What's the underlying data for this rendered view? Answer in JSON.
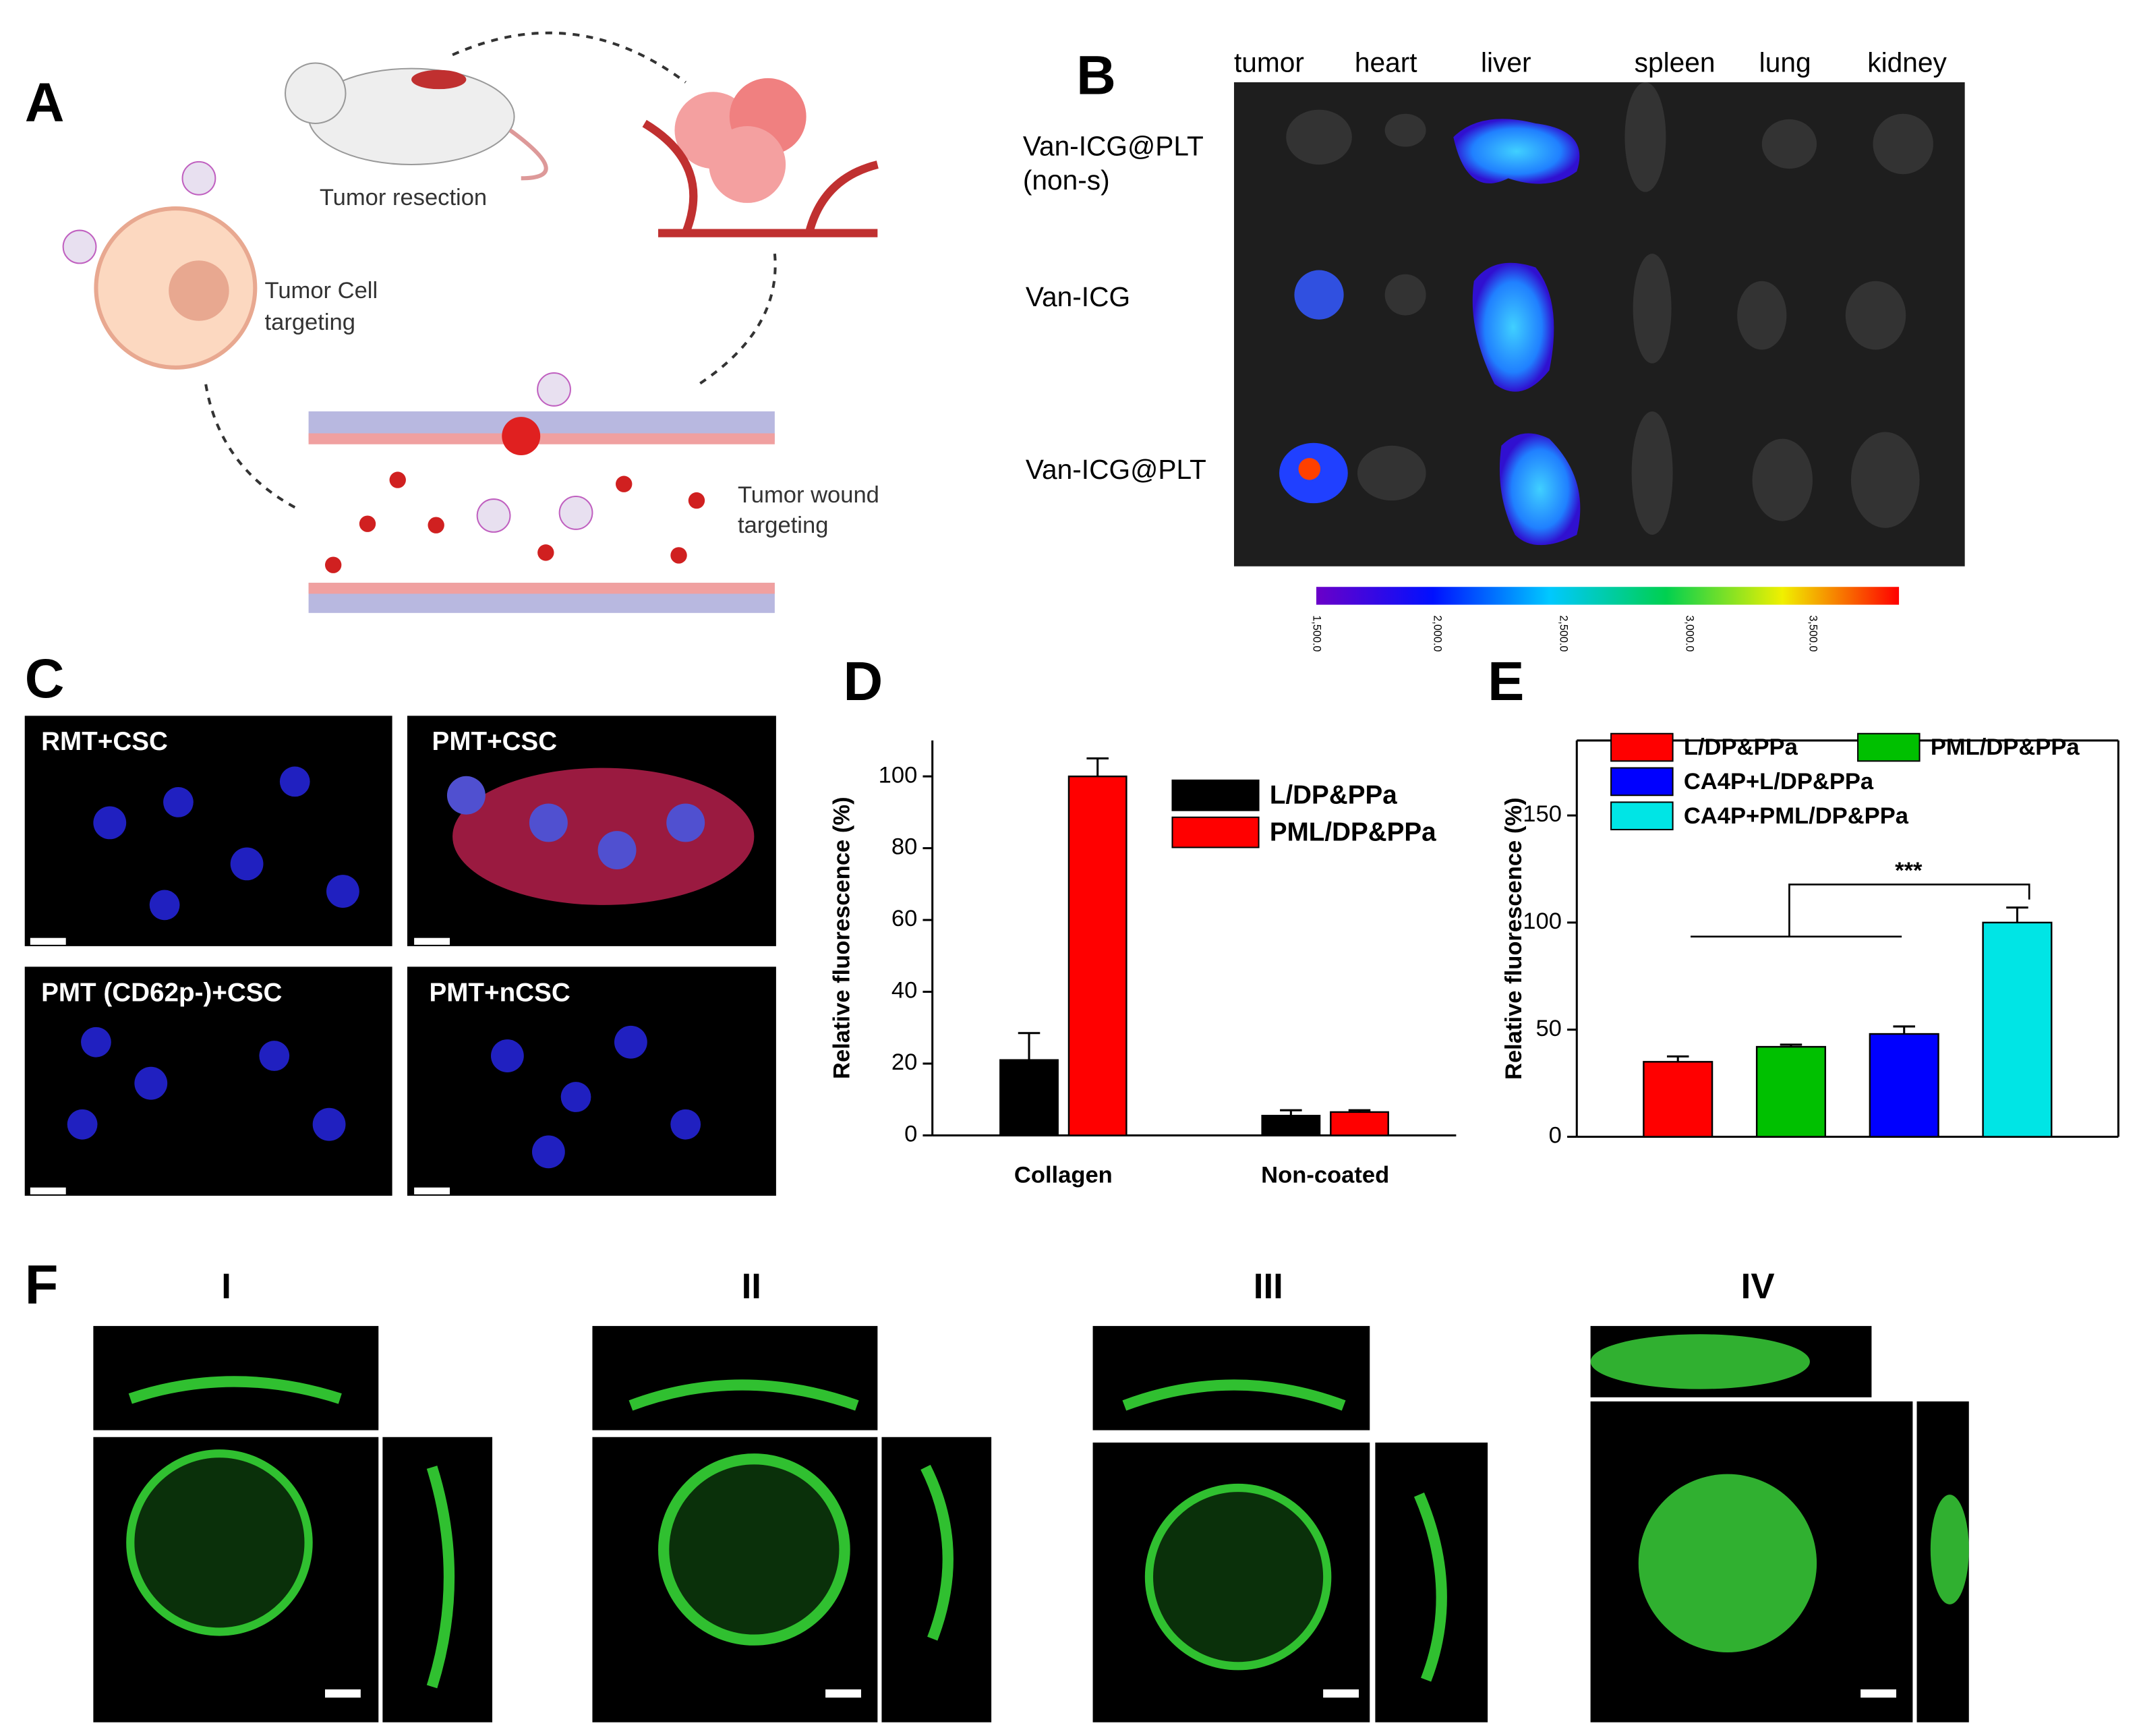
{
  "panel_a": {
    "label": "A",
    "texts": [
      "Tumor resection",
      "Tumor Cell",
      "targeting",
      "Tumor wound",
      "targeting"
    ]
  },
  "panel_b": {
    "label": "B",
    "organs": [
      "tumor",
      "heart",
      "liver",
      "spleen",
      "lung",
      "kidney"
    ],
    "rows": [
      "Van-ICG@PLT",
      "(non-s)",
      "Van-ICG",
      "Van-ICG@PLT"
    ],
    "colorbar_ticks": [
      "1,500.0",
      "2,000.0",
      "2,500.0",
      "3,000.0",
      "3,500.0"
    ]
  },
  "panel_c": {
    "label": "C",
    "images": [
      "RMT+CSC",
      "PMT+CSC",
      "PMT (CD62p-)+CSC",
      "PMT+nCSC"
    ]
  },
  "chart_data": [
    {
      "type": "bar",
      "panel_label": "D",
      "y_label": "Relative fluorescence (%)",
      "categories": [
        "Collagen",
        "Non-coated"
      ],
      "series": [
        {
          "name": "L/DP&PPa",
          "color": "#000000",
          "values": [
            21,
            5.5
          ],
          "errors": [
            7.5,
            1.5
          ]
        },
        {
          "name": "PML/DP&PPa",
          "color": "#ff0000",
          "values": [
            100,
            6.5
          ],
          "errors": [
            5,
            0.5
          ]
        }
      ],
      "ylim": [
        0,
        110
      ],
      "yticks": [
        0,
        20,
        40,
        60,
        80,
        100
      ]
    },
    {
      "type": "bar",
      "panel_label": "E",
      "y_label": "Relative fluorescence (%)",
      "categories": [
        null
      ],
      "series": [
        {
          "name": "L/DP&PPa",
          "color": "#ff0000",
          "values": [
            35
          ],
          "errors": [
            2.5
          ]
        },
        {
          "name": "PML/DP&PPa",
          "color": "#00c000",
          "values": [
            42
          ],
          "errors": [
            1
          ]
        },
        {
          "name": "CA4P+L/DP&PPa",
          "color": "#0000ff",
          "values": [
            48
          ],
          "errors": [
            3.5
          ]
        },
        {
          "name": "CA4P+PML/DP&PPa",
          "color": "#00e5e5",
          "values": [
            100
          ],
          "errors": [
            7
          ]
        }
      ],
      "ylim": [
        0,
        185
      ],
      "yticks": [
        0,
        50,
        100,
        150
      ],
      "annotation": "***"
    }
  ],
  "panel_f": {
    "label": "F",
    "images": [
      "I",
      "II",
      "III",
      "IV"
    ]
  }
}
